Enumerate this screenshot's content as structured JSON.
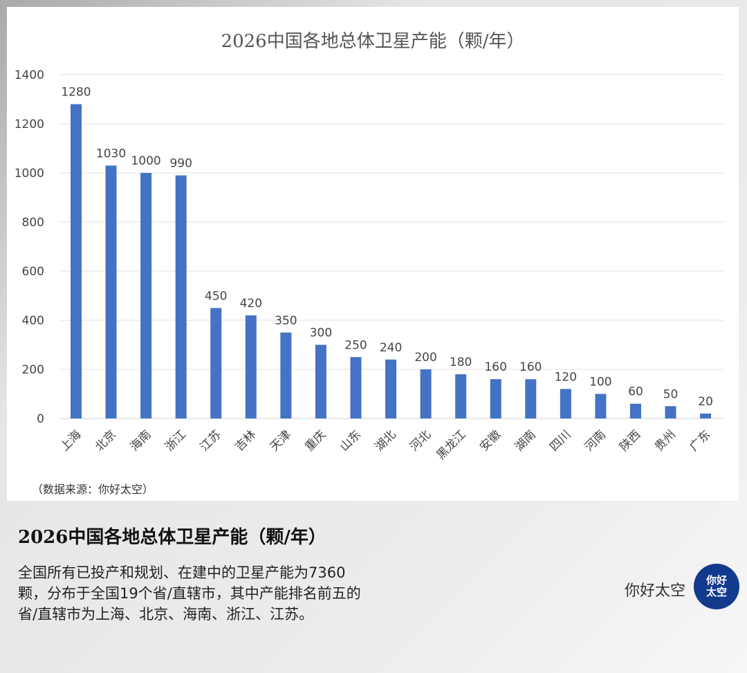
{
  "chart_data": {
    "type": "bar",
    "title": "2026中国各地总体卫星产能（颗/年）",
    "xlabel": "",
    "ylabel": "",
    "ylim": [
      0,
      1400
    ],
    "yticks": [
      0,
      200,
      400,
      600,
      800,
      1000,
      1200,
      1400
    ],
    "grid": true,
    "color": "#4472c4",
    "categories": [
      "上海",
      "北京",
      "海南",
      "浙江",
      "江苏",
      "吉林",
      "天津",
      "重庆",
      "山东",
      "湖北",
      "河北",
      "黑龙江",
      "安徽",
      "湖南",
      "四川",
      "河南",
      "陕西",
      "贵州",
      "广东"
    ],
    "values": [
      1280,
      1030,
      1000,
      990,
      450,
      420,
      350,
      300,
      250,
      240,
      200,
      180,
      160,
      160,
      120,
      100,
      60,
      50,
      20
    ]
  },
  "source": "（数据来源：你好太空）",
  "caption": {
    "title": "2026中国各地总体卫星产能（颗/年）",
    "description": "全国所有已投产和规划、在建中的卫星产能为7360颗，分布于全国19个省/直辖市，其中产能排名前五的省/直辖市为上海、北京、海南、浙江、江苏。"
  },
  "brand": {
    "name": "你好太空",
    "logo_text": "你好太空",
    "logo_color": "#123a8c"
  }
}
